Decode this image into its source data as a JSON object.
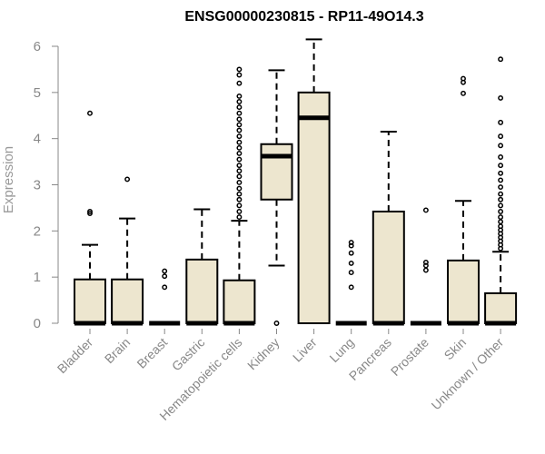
{
  "chart_data": {
    "type": "boxplot",
    "title": "ENSG00000230815 - RP11-49O14.3",
    "ylabel": "Expression",
    "xlabel": "",
    "ylim": [
      0,
      6.2
    ],
    "yticks": [
      0,
      1,
      2,
      3,
      4,
      5,
      6
    ],
    "categories": [
      "Bladder",
      "Brain",
      "Breast",
      "Gastric",
      "Hematopoietic cells",
      "Kidney",
      "Liver",
      "Lung",
      "Pancreas",
      "Prostate",
      "Skin",
      "Unknown / Other"
    ],
    "colors": {
      "box_fill": "#ede6cf",
      "box_stroke": "#000000",
      "axis": "#888888",
      "tick_label": "#888888"
    },
    "boxes": [
      {
        "category": "Bladder",
        "q1": 0,
        "median": 0,
        "q3": 0.95,
        "whisker_low": 0,
        "whisker_high": 1.7,
        "outliers": [
          2.38,
          2.42,
          4.55
        ]
      },
      {
        "category": "Brain",
        "q1": 0,
        "median": 0,
        "q3": 0.95,
        "whisker_low": 0,
        "whisker_high": 2.27,
        "outliers": [
          3.12
        ]
      },
      {
        "category": "Breast",
        "q1": 0,
        "median": 0,
        "q3": 0,
        "whisker_low": 0,
        "whisker_high": 0,
        "outliers": [
          0.78,
          1.02,
          1.13
        ]
      },
      {
        "category": "Gastric",
        "q1": 0,
        "median": 0,
        "q3": 1.38,
        "whisker_low": 0,
        "whisker_high": 2.47,
        "outliers": []
      },
      {
        "category": "Hematopoietic cells",
        "q1": 0,
        "median": 0,
        "q3": 0.93,
        "whisker_low": 0,
        "whisker_high": 2.22,
        "outliers": [
          2.3,
          2.42,
          2.55,
          2.68,
          2.8,
          2.92,
          3.05,
          3.18,
          3.3,
          3.42,
          3.55,
          3.68,
          3.8,
          3.92,
          4.05,
          4.18,
          4.3,
          4.42,
          4.55,
          4.68,
          4.8,
          4.92,
          5.2,
          5.38,
          5.5
        ]
      },
      {
        "category": "Kidney",
        "q1": 2.68,
        "median": 3.62,
        "q3": 3.88,
        "whisker_low": 1.25,
        "whisker_high": 5.48,
        "outliers": [
          0
        ]
      },
      {
        "category": "Liver",
        "q1": 0,
        "median": 4.45,
        "q3": 5.0,
        "whisker_low": 0,
        "whisker_high": 6.15,
        "outliers": []
      },
      {
        "category": "Lung",
        "q1": 0,
        "median": 0,
        "q3": 0,
        "whisker_low": 0,
        "whisker_high": 0,
        "outliers": [
          0.78,
          1.1,
          1.3,
          1.52,
          1.68,
          1.75
        ]
      },
      {
        "category": "Pancreas",
        "q1": 0,
        "median": 0,
        "q3": 2.42,
        "whisker_low": 0,
        "whisker_high": 4.15,
        "outliers": []
      },
      {
        "category": "Prostate",
        "q1": 0,
        "median": 0,
        "q3": 0,
        "whisker_low": 0,
        "whisker_high": 0,
        "outliers": [
          1.15,
          1.25,
          1.32,
          2.45
        ]
      },
      {
        "category": "Skin",
        "q1": 0,
        "median": 0,
        "q3": 1.36,
        "whisker_low": 0,
        "whisker_high": 2.65,
        "outliers": [
          4.98,
          5.22,
          5.3
        ]
      },
      {
        "category": "Unknown / Other",
        "q1": 0,
        "median": 0,
        "q3": 0.65,
        "whisker_low": 0,
        "whisker_high": 1.55,
        "outliers": [
          1.62,
          1.7,
          1.78,
          1.86,
          1.94,
          2.02,
          2.1,
          2.2,
          2.3,
          2.42,
          2.55,
          2.68,
          2.8,
          2.95,
          3.1,
          3.25,
          3.42,
          3.6,
          3.85,
          4.05,
          4.35,
          4.88,
          5.72
        ]
      }
    ]
  }
}
